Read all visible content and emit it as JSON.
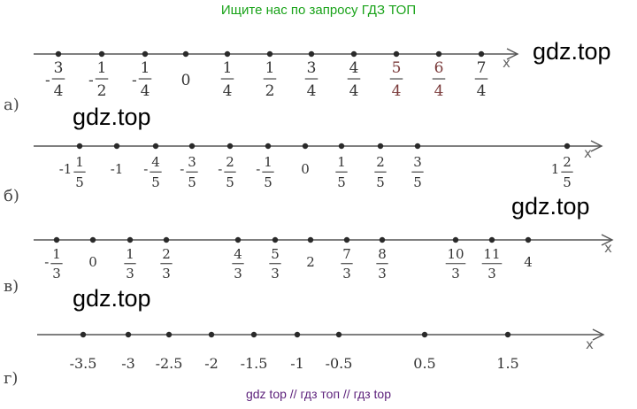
{
  "header": {
    "banner": "Ищите нас по запросу ГДЗ ТОП"
  },
  "footer": {
    "banner": "gdz top  //  гдз топ  //  гдз top"
  },
  "watermarks": [
    "gdz.top",
    "gdz.top",
    "gdz.top",
    "gdz.top"
  ],
  "number_lines": [
    {
      "label": "а)",
      "axis_label": "x",
      "ticks": [
        {
          "sign": "-",
          "whole": "",
          "num": "3",
          "den": "4"
        },
        {
          "sign": "-",
          "whole": "",
          "num": "1",
          "den": "2"
        },
        {
          "sign": "-",
          "whole": "",
          "num": "1",
          "den": "4"
        },
        {
          "sign": "",
          "whole": "0",
          "num": "",
          "den": ""
        },
        {
          "sign": "",
          "whole": "",
          "num": "1",
          "den": "4"
        },
        {
          "sign": "",
          "whole": "",
          "num": "1",
          "den": "2"
        },
        {
          "sign": "",
          "whole": "",
          "num": "3",
          "den": "4"
        },
        {
          "sign": "",
          "whole": "",
          "num": "4",
          "den": "4"
        },
        {
          "sign": "",
          "whole": "",
          "num": "5",
          "den": "4"
        },
        {
          "sign": "",
          "whole": "",
          "num": "6",
          "den": "4"
        },
        {
          "sign": "",
          "whole": "",
          "num": "7",
          "den": "4"
        }
      ]
    },
    {
      "label": "б)",
      "axis_label": "x",
      "ticks": [
        {
          "sign": "-",
          "whole": "1",
          "num": "1",
          "den": "5"
        },
        {
          "sign": "-",
          "whole": "1",
          "num": "",
          "den": ""
        },
        {
          "sign": "-",
          "whole": "",
          "num": "4",
          "den": "5"
        },
        {
          "sign": "-",
          "whole": "",
          "num": "3",
          "den": "5"
        },
        {
          "sign": "-",
          "whole": "",
          "num": "2",
          "den": "5"
        },
        {
          "sign": "-",
          "whole": "",
          "num": "1",
          "den": "5"
        },
        {
          "sign": "",
          "whole": "0",
          "num": "",
          "den": ""
        },
        {
          "sign": "",
          "whole": "",
          "num": "1",
          "den": "5"
        },
        {
          "sign": "",
          "whole": "",
          "num": "2",
          "den": "5"
        },
        {
          "sign": "",
          "whole": "",
          "num": "3",
          "den": "5"
        },
        {
          "sign": "",
          "whole": "1",
          "num": "2",
          "den": "5"
        }
      ]
    },
    {
      "label": "в)",
      "axis_label": "x",
      "ticks": [
        {
          "sign": "-",
          "whole": "",
          "num": "1",
          "den": "3"
        },
        {
          "sign": "",
          "whole": "0",
          "num": "",
          "den": ""
        },
        {
          "sign": "",
          "whole": "",
          "num": "1",
          "den": "3"
        },
        {
          "sign": "",
          "whole": "",
          "num": "2",
          "den": "3"
        },
        {
          "sign": "",
          "whole": "",
          "num": "4",
          "den": "3"
        },
        {
          "sign": "",
          "whole": "",
          "num": "5",
          "den": "3"
        },
        {
          "sign": "",
          "whole": "2",
          "num": "",
          "den": ""
        },
        {
          "sign": "",
          "whole": "",
          "num": "7",
          "den": "3"
        },
        {
          "sign": "",
          "whole": "",
          "num": "8",
          "den": "3"
        },
        {
          "sign": "",
          "whole": "",
          "num": "10",
          "den": "3"
        },
        {
          "sign": "",
          "whole": "",
          "num": "11",
          "den": "3"
        },
        {
          "sign": "",
          "whole": "4",
          "num": "",
          "den": ""
        }
      ]
    },
    {
      "label": "г)",
      "axis_label": "x",
      "ticks": [
        {
          "sign": "",
          "whole": "-3.5",
          "num": "",
          "den": ""
        },
        {
          "sign": "",
          "whole": "-3",
          "num": "",
          "den": ""
        },
        {
          "sign": "",
          "whole": "-2.5",
          "num": "",
          "den": ""
        },
        {
          "sign": "",
          "whole": "-2",
          "num": "",
          "den": ""
        },
        {
          "sign": "",
          "whole": "-1.5",
          "num": "",
          "den": ""
        },
        {
          "sign": "",
          "whole": "-1",
          "num": "",
          "den": ""
        },
        {
          "sign": "",
          "whole": "-0.5",
          "num": "",
          "den": ""
        },
        {
          "sign": "",
          "whole": "0.5",
          "num": "",
          "den": ""
        },
        {
          "sign": "",
          "whole": "1.5",
          "num": "",
          "den": ""
        }
      ]
    }
  ]
}
